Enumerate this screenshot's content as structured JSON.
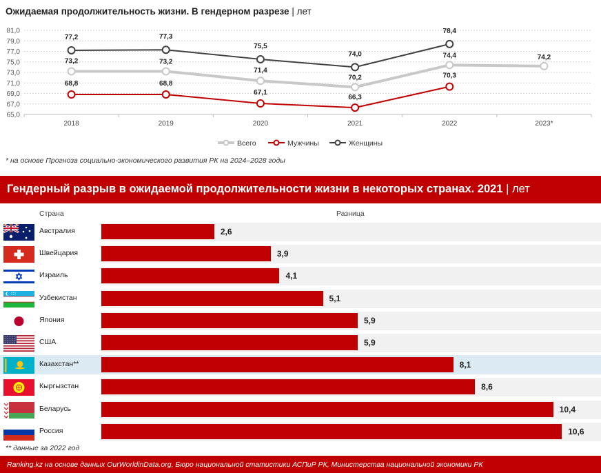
{
  "top_chart": {
    "title": "Ожидаемая продолжительность жизни. В гендерном разрезе",
    "separator": "|",
    "unit": "лет",
    "footnote": "* на основе Прогноза социально-экономического развития РК на 2024–2028 годы"
  },
  "chart_data": [
    {
      "type": "line",
      "categories": [
        "2018",
        "2019",
        "2020",
        "2021",
        "2022",
        "2023*"
      ],
      "ylim": [
        65,
        81
      ],
      "yticks": [
        "65,0",
        "67,0",
        "69,0",
        "71,0",
        "73,0",
        "75,0",
        "77,0",
        "79,0",
        "81,0"
      ],
      "grid": true,
      "legend_position": "bottom",
      "series": [
        {
          "name": "Всего",
          "color": "#c8c8c8",
          "values": [
            73.2,
            73.2,
            71.4,
            70.2,
            74.4,
            74.2
          ],
          "labels": [
            "73,2",
            "73,2",
            "71,4",
            "70,2",
            "74,4",
            "74,2"
          ]
        },
        {
          "name": "Мужчины",
          "color": "#c00000",
          "values": [
            68.8,
            68.8,
            67.1,
            66.3,
            70.3,
            null
          ],
          "labels": [
            "68,8",
            "68,8",
            "67,1",
            "66,3",
            "70,3",
            null
          ]
        },
        {
          "name": "Женщины",
          "color": "#404040",
          "values": [
            77.2,
            77.3,
            75.5,
            74.0,
            78.4,
            null
          ],
          "labels": [
            "77,2",
            "77,3",
            "75,5",
            "74,0",
            "78,4",
            null
          ]
        }
      ]
    },
    {
      "type": "bar",
      "orientation": "horizontal",
      "title": "Гендерный разрыв в ожидаемой продолжительности жизни в некоторых странах. 2021",
      "separator": "|",
      "unit": "лет",
      "column_headers": {
        "country": "Страна",
        "value": "Разница"
      },
      "xlim": [
        0,
        11.5
      ],
      "rows": [
        {
          "country": "Австралия",
          "flag": "australia-flag",
          "value": 2.6,
          "label": "2,6",
          "highlight": false
        },
        {
          "country": "Швейцария",
          "flag": "switzerland-flag",
          "value": 3.9,
          "label": "3,9",
          "highlight": false
        },
        {
          "country": "Израиль",
          "flag": "israel-flag",
          "value": 4.1,
          "label": "4,1",
          "highlight": false
        },
        {
          "country": "Узбекистан",
          "flag": "uzbekistan-flag",
          "value": 5.1,
          "label": "5,1",
          "highlight": false
        },
        {
          "country": "Япония",
          "flag": "japan-flag",
          "value": 5.9,
          "label": "5,9",
          "highlight": false
        },
        {
          "country": "США",
          "flag": "usa-flag",
          "value": 5.9,
          "label": "5,9",
          "highlight": false
        },
        {
          "country": "Казахстан**",
          "flag": "kazakhstan-flag",
          "value": 8.1,
          "label": "8,1",
          "highlight": true
        },
        {
          "country": "Кыргызстан",
          "flag": "kyrgyzstan-flag",
          "value": 8.6,
          "label": "8,6",
          "highlight": false
        },
        {
          "country": "Беларусь",
          "flag": "belarus-flag",
          "value": 10.4,
          "label": "10,4",
          "highlight": false
        },
        {
          "country": "Россия",
          "flag": "russia-flag",
          "value": 10.6,
          "label": "10,6",
          "highlight": false
        }
      ],
      "footnote": "** данные за 2022 год"
    }
  ],
  "source": "Ranking.kz на основе данных OurWorldinData.org, Бюро национальной статистики АСПиР РК, Министерства национальной экономики РК",
  "colors": {
    "accent": "#c00000",
    "highlight_row": "#dcebf3",
    "total_line": "#c8c8c8",
    "women_line": "#404040"
  }
}
